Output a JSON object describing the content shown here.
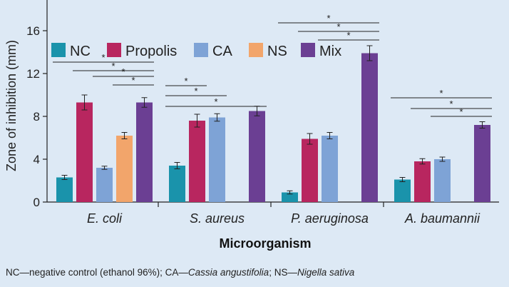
{
  "chart_data": {
    "type": "bar",
    "ylabel": "Zone of inhibition (mm)",
    "xlabel": "Microorganism",
    "ylim": [
      0,
      18
    ],
    "yticks": [
      0,
      4,
      8,
      12,
      16
    ],
    "categories": [
      "E. coli",
      "S. aureus",
      "P. aeruginosa",
      "A. baumannii"
    ],
    "series": [
      {
        "name": "NC",
        "color": "#1a93ab",
        "values": [
          2.3,
          3.4,
          0.9,
          2.1
        ],
        "errors": [
          0.2,
          0.3,
          0.15,
          0.2
        ]
      },
      {
        "name": "Propolis",
        "color": "#b8265f",
        "values": [
          9.3,
          7.6,
          5.9,
          3.8
        ],
        "errors": [
          0.7,
          0.6,
          0.5,
          0.25
        ]
      },
      {
        "name": "CA",
        "color": "#7ea3d6",
        "values": [
          3.2,
          7.9,
          6.2,
          4.0
        ],
        "errors": [
          0.15,
          0.35,
          0.3,
          0.2
        ]
      },
      {
        "name": "NS",
        "color": "#f2a56b",
        "values": [
          6.2,
          null,
          null,
          null
        ],
        "errors": [
          0.3,
          null,
          null,
          null
        ]
      },
      {
        "name": "Mix",
        "color": "#6b3f93",
        "values": [
          9.3,
          8.5,
          13.9,
          7.2
        ],
        "errors": [
          0.45,
          0.45,
          0.7,
          0.3
        ]
      }
    ],
    "significance": [
      {
        "category": 0,
        "from_series": 0,
        "to_series": 4,
        "label": "*"
      },
      {
        "category": 0,
        "from_series": 1,
        "to_series": 4,
        "label": "*"
      },
      {
        "category": 0,
        "from_series": 2,
        "to_series": 4,
        "label": "*"
      },
      {
        "category": 0,
        "from_series": 3,
        "to_series": 4,
        "label": "*"
      },
      {
        "category": 1,
        "from_series": 0,
        "to_series": 1,
        "label": "*"
      },
      {
        "category": 1,
        "from_series": 0,
        "to_series": 2,
        "label": "*"
      },
      {
        "category": 1,
        "from_series": 0,
        "to_series": 4,
        "label": "*"
      },
      {
        "category": 2,
        "from_series": 0,
        "to_series": 4,
        "label": "*"
      },
      {
        "category": 2,
        "from_series": 1,
        "to_series": 4,
        "label": "*"
      },
      {
        "category": 2,
        "from_series": 2,
        "to_series": 4,
        "label": "*"
      },
      {
        "category": 3,
        "from_series": 0,
        "to_series": 4,
        "label": "*"
      },
      {
        "category": 3,
        "from_series": 1,
        "to_series": 4,
        "label": "*"
      },
      {
        "category": 3,
        "from_series": 2,
        "to_series": 4,
        "label": "*"
      }
    ]
  },
  "footnote": {
    "part1": "NC—negative control (ethanol 96%); CA—",
    "species1": "Cassia angustifolia",
    "part2": "; NS—",
    "species2": "Nigella sativa"
  }
}
